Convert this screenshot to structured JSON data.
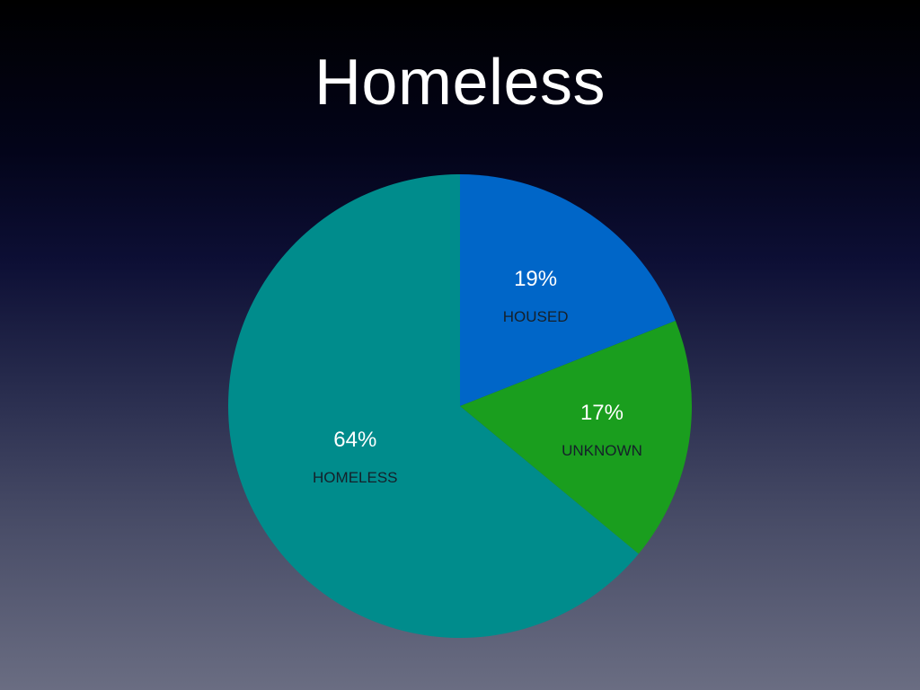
{
  "slide": {
    "title": "Homeless"
  },
  "chart_data": {
    "type": "pie",
    "title": "Homeless",
    "slices": [
      {
        "label": "HOUSED",
        "value": 19,
        "display": "19%",
        "color": "#0066c8"
      },
      {
        "label": "UNKNOWN",
        "value": 17,
        "display": "17%",
        "color": "#1a9e1e"
      },
      {
        "label": "HOMELESS",
        "value": 64,
        "display": "64%",
        "color": "#008c8c"
      }
    ],
    "start_angle": "12 o'clock",
    "direction": "clockwise"
  }
}
